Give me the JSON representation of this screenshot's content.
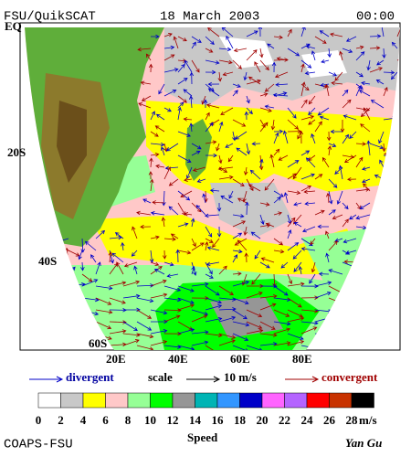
{
  "header": {
    "source": "FSU/QuikSCAT",
    "date": "18 March 2003",
    "time": "00:00"
  },
  "map": {
    "lat_labels": [
      "EQ",
      "20S",
      "40S",
      "60S"
    ],
    "lon_labels": [
      "20E",
      "40E",
      "60E",
      "80E"
    ]
  },
  "legend": {
    "divergent": "divergent",
    "scale": "scale",
    "scale_value": "10 m/s",
    "convergent": "convergent"
  },
  "colorbar": {
    "colors": [
      "#ffffff",
      "#c8c8c8",
      "#ffff00",
      "#ffc8c8",
      "#96ff96",
      "#00ff00",
      "#969696",
      "#00b4b4",
      "#3296ff",
      "#0000c8",
      "#ff64ff",
      "#b464ff",
      "#ff0000",
      "#c83200",
      "#000000"
    ],
    "ticks": [
      0,
      2,
      4,
      6,
      8,
      10,
      12,
      14,
      16,
      18,
      20,
      22,
      24,
      26,
      28
    ],
    "unit": "m/s"
  },
  "footer": {
    "left": "COAPS-FSU",
    "center": "Speed",
    "right": "Yan Gu"
  }
}
